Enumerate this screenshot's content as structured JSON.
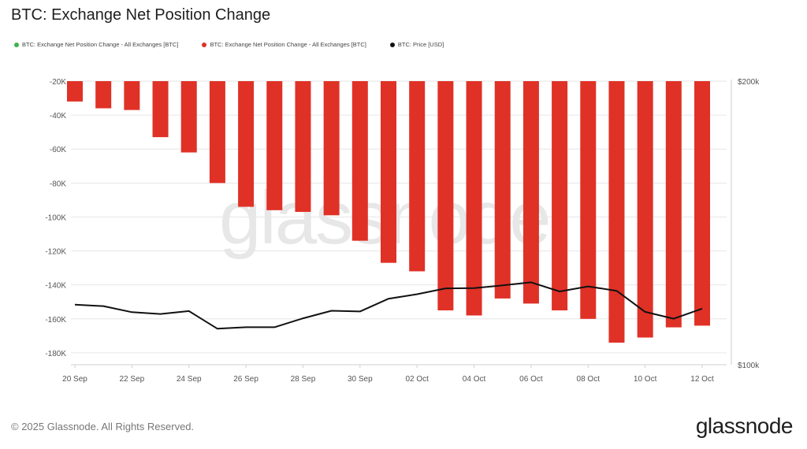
{
  "header": {
    "title": "BTC: Exchange Net Position Change"
  },
  "watermark": "glassnode",
  "footer": {
    "copyright": "© 2025 Glassnode. All Rights Reserved.",
    "brand": "glassnode"
  },
  "colors": {
    "bar": "#e03127",
    "price": "#111111",
    "legend_green": "#3bb54a",
    "grid": "#e6e6e6"
  },
  "chart_data": {
    "type": "bar",
    "title": "BTC: Exchange Net Position Change",
    "legend": [
      {
        "label": "BTC: Exchange Net Position Change - All Exchanges [BTC]",
        "color": "#3bb54a"
      },
      {
        "label": "BTC: Exchange Net Position Change - All Exchanges [BTC]",
        "color": "#e03127"
      },
      {
        "label": "BTC: Price [USD]",
        "color": "#111111"
      }
    ],
    "legend_position": "top-left",
    "grid": true,
    "x_dates": [
      "20 Sep",
      "21 Sep",
      "22 Sep",
      "23 Sep",
      "24 Sep",
      "25 Sep",
      "26 Sep",
      "27 Sep",
      "28 Sep",
      "29 Sep",
      "30 Sep",
      "01 Oct",
      "02 Oct",
      "03 Oct",
      "04 Oct",
      "05 Oct",
      "06 Oct",
      "07 Oct",
      "08 Oct",
      "09 Oct",
      "10 Oct",
      "11 Oct",
      "12 Oct"
    ],
    "x_tick_labels": [
      "20 Sep",
      "22 Sep",
      "24 Sep",
      "26 Sep",
      "28 Sep",
      "30 Sep",
      "02 Oct",
      "04 Oct",
      "06 Oct",
      "08 Oct",
      "10 Oct",
      "12 Oct"
    ],
    "series": [
      {
        "axis": "left",
        "type": "bar",
        "values": [
          -32000,
          -36000,
          -37000,
          -53000,
          -62000,
          -80000,
          -94000,
          -96000,
          -97000,
          -99000,
          -114000,
          -127000,
          -132000,
          -155000,
          -158000,
          -148000,
          -151000,
          -155000,
          -160000,
          -174000,
          -171000,
          -165000,
          -164000
        ]
      },
      {
        "name": "BTC: Price [USD]",
        "axis": "right",
        "type": "line",
        "values": [
          115800,
          115400,
          113700,
          113200,
          114000,
          109200,
          109600,
          109600,
          112000,
          114100,
          113900,
          117500,
          118800,
          120500,
          120600,
          121400,
          122300,
          119600,
          121100,
          119800,
          113800,
          111900,
          114700
        ]
      }
    ],
    "y_left": {
      "ylim": [
        -187000,
        -20000
      ],
      "ticks": [
        -20000,
        -40000,
        -60000,
        -80000,
        -100000,
        -120000,
        -140000,
        -160000,
        -180000
      ],
      "tick_labels": [
        "-20K",
        "-40K",
        "-60K",
        "-80K",
        "-100K",
        "-120K",
        "-140K",
        "-160K",
        "-180K"
      ]
    },
    "y_right": {
      "scale": "log",
      "ylim": [
        100000,
        200000
      ],
      "tick_labels": [
        "$200k",
        "$100k"
      ]
    }
  }
}
